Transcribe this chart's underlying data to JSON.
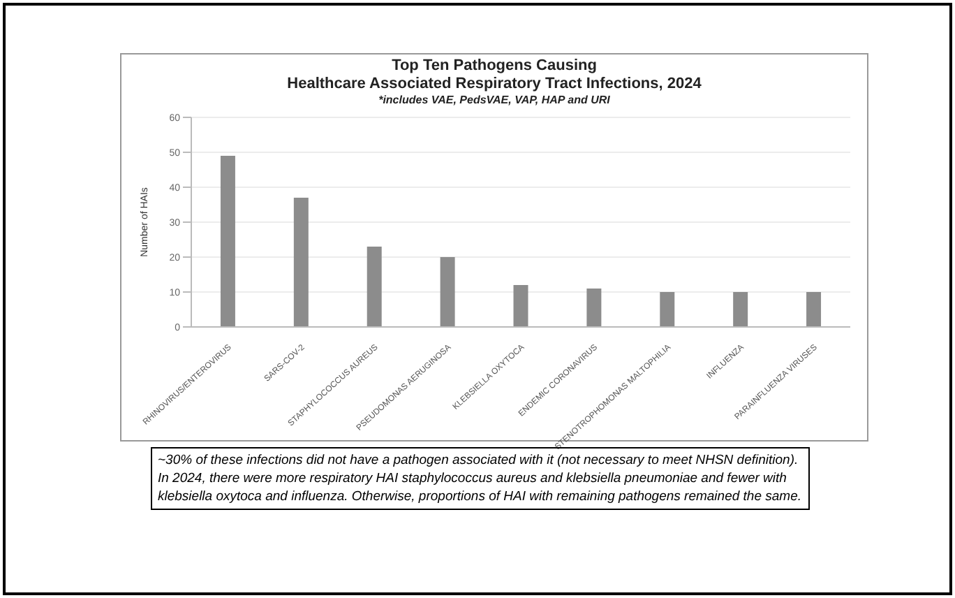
{
  "chart_data": {
    "type": "bar",
    "title": "Top Ten Pathogens Causing\nHealthcare Associated Respiratory Tract Infections, 2024",
    "subtitle": "*includes VAE, PedsVAE, VAP, HAP and URI",
    "ylabel": "Number of HAIs",
    "categories": [
      "RHINOVIRUS/ENTEROVIRUS",
      "SARS-COV-2",
      "STAPHYLOCOCCUS AUREUS",
      "PSEUDOMONAS AERUGINOSA",
      "KLEBSIELLA OXYTOCA",
      "ENDEMIC CORONAVIRUS",
      "STENOTROPHOMONAS MALTOPHILIA",
      "INFLUENZA",
      "PARAINFLUENZA VIRUSES"
    ],
    "values": [
      49,
      37,
      23,
      20,
      12,
      11,
      10,
      10,
      10
    ],
    "color": "#8c8c8c",
    "ylim": [
      0,
      60
    ],
    "yticks": [
      0,
      10,
      20,
      30,
      40,
      50,
      60
    ],
    "grid": "y",
    "legend": false,
    "annotations": [
      "~30% of these infections did not have a pathogen associated with it (not necessary to meet NHSN definition). In 2024, there were more respiratory HAI staphylococcus aureus and klebsiella pneumoniae and fewer with klebsiella oxytoca and influenza. Otherwise, proportions of HAI with remaining pathogens remained the same."
    ]
  }
}
